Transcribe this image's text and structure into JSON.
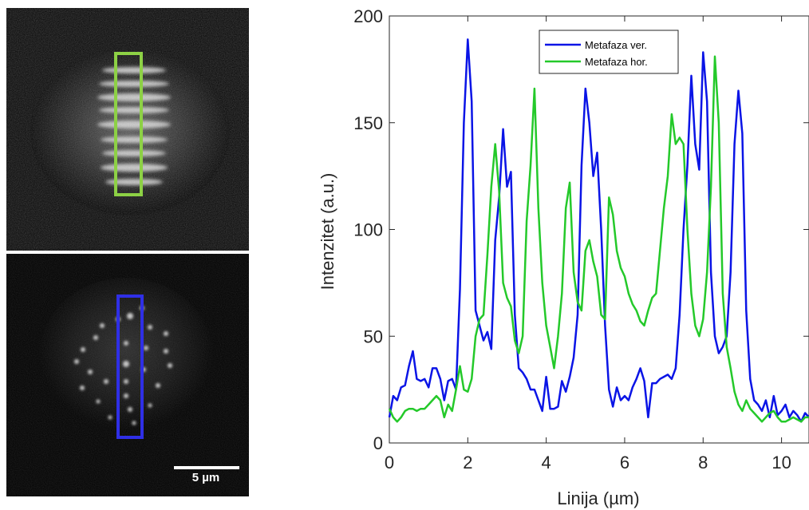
{
  "images": {
    "top_panel": {
      "name": "metaphase-horizontal-micrograph",
      "roi_color": "#8dd145"
    },
    "bottom_panel": {
      "name": "metaphase-vertical-micrograph",
      "roi_color": "#2f2fe6"
    },
    "scale_bar_label": "5 µm"
  },
  "chart_data": {
    "type": "line",
    "title": "",
    "xlabel": "Linija (µm)",
    "ylabel": "Intenzitet (a.u.)",
    "xlim": [
      0,
      10.7
    ],
    "ylim": [
      0,
      200
    ],
    "xticks": [
      0,
      2,
      4,
      6,
      8,
      10
    ],
    "yticks": [
      0,
      50,
      100,
      150,
      200
    ],
    "grid": false,
    "legend_position": "top-center",
    "series": [
      {
        "name": "Metafaza ver.",
        "color": "#0a14e6",
        "x": [
          0.0,
          0.1,
          0.2,
          0.3,
          0.4,
          0.5,
          0.6,
          0.7,
          0.8,
          0.9,
          1.0,
          1.1,
          1.2,
          1.3,
          1.4,
          1.5,
          1.6,
          1.7,
          1.8,
          1.9,
          2.0,
          2.1,
          2.2,
          2.3,
          2.4,
          2.5,
          2.6,
          2.7,
          2.8,
          2.9,
          3.0,
          3.1,
          3.2,
          3.3,
          3.4,
          3.5,
          3.6,
          3.7,
          3.8,
          3.9,
          4.0,
          4.1,
          4.2,
          4.3,
          4.4,
          4.5,
          4.6,
          4.7,
          4.8,
          4.9,
          5.0,
          5.1,
          5.2,
          5.3,
          5.4,
          5.5,
          5.6,
          5.7,
          5.8,
          5.9,
          6.0,
          6.1,
          6.2,
          6.3,
          6.4,
          6.5,
          6.6,
          6.7,
          6.8,
          6.9,
          7.0,
          7.1,
          7.2,
          7.3,
          7.4,
          7.5,
          7.6,
          7.7,
          7.8,
          7.9,
          8.0,
          8.1,
          8.2,
          8.3,
          8.4,
          8.5,
          8.6,
          8.7,
          8.8,
          8.9,
          9.0,
          9.1,
          9.2,
          9.3,
          9.4,
          9.5,
          9.6,
          9.7,
          9.8,
          9.9,
          10.0,
          10.1,
          10.2,
          10.3,
          10.4,
          10.5,
          10.6,
          10.7
        ],
        "values": [
          12,
          22,
          20,
          26,
          27,
          36,
          43,
          30,
          29,
          30,
          26,
          35,
          35,
          30,
          20,
          29,
          30,
          25,
          72,
          150,
          189,
          160,
          62,
          55,
          48,
          52,
          44,
          95,
          115,
          147,
          120,
          127,
          60,
          35,
          33,
          30,
          25,
          25,
          20,
          15,
          31,
          16,
          16,
          17,
          29,
          24,
          31,
          40,
          60,
          130,
          166,
          150,
          125,
          136,
          100,
          55,
          25,
          17,
          26,
          20,
          22,
          20,
          26,
          30,
          35,
          29,
          12,
          28,
          28,
          30,
          31,
          32,
          30,
          35,
          60,
          100,
          130,
          172,
          140,
          128,
          183,
          160,
          80,
          50,
          42,
          45,
          50,
          80,
          140,
          165,
          145,
          62,
          30,
          20,
          18,
          15,
          20,
          12,
          22,
          13,
          15,
          18,
          12,
          15,
          13,
          10,
          14,
          12
        ],
        "note_x_extends": "auto"
      },
      {
        "name": "Metafaza hor.",
        "color": "#24c92a",
        "x": [
          0.0,
          0.1,
          0.2,
          0.3,
          0.4,
          0.5,
          0.6,
          0.7,
          0.8,
          0.9,
          1.0,
          1.1,
          1.2,
          1.3,
          1.4,
          1.5,
          1.6,
          1.7,
          1.8,
          1.9,
          2.0,
          2.1,
          2.2,
          2.3,
          2.4,
          2.5,
          2.6,
          2.7,
          2.8,
          2.9,
          3.0,
          3.1,
          3.2,
          3.3,
          3.4,
          3.5,
          3.6,
          3.7,
          3.8,
          3.9,
          4.0,
          4.1,
          4.2,
          4.3,
          4.4,
          4.5,
          4.6,
          4.7,
          4.8,
          4.9,
          5.0,
          5.1,
          5.2,
          5.3,
          5.4,
          5.5,
          5.6,
          5.7,
          5.8,
          5.9,
          6.0,
          6.1,
          6.2,
          6.3,
          6.4,
          6.5,
          6.6,
          6.7,
          6.8,
          6.9,
          7.0,
          7.1,
          7.2,
          7.3,
          7.4,
          7.5,
          7.6,
          7.7,
          7.8,
          7.9,
          8.0,
          8.1,
          8.2,
          8.3,
          8.4,
          8.5,
          8.6,
          8.7,
          8.8,
          8.9,
          9.0,
          9.1,
          9.2,
          9.3,
          9.4,
          9.5,
          9.6,
          9.7,
          9.8,
          9.9,
          10.0,
          10.1,
          10.2,
          10.3,
          10.4,
          10.5,
          10.6,
          10.7
        ],
        "values": [
          16,
          12,
          10,
          12,
          15,
          16,
          16,
          15,
          16,
          16,
          18,
          20,
          22,
          20,
          12,
          18,
          15,
          25,
          36,
          25,
          24,
          30,
          50,
          58,
          60,
          88,
          120,
          140,
          118,
          75,
          68,
          64,
          48,
          42,
          50,
          104,
          130,
          166,
          110,
          75,
          55,
          45,
          35,
          50,
          70,
          110,
          122,
          80,
          66,
          62,
          90,
          95,
          85,
          78,
          60,
          58,
          115,
          107,
          90,
          82,
          78,
          70,
          65,
          62,
          57,
          55,
          62,
          68,
          70,
          90,
          110,
          125,
          154,
          140,
          143,
          140,
          100,
          70,
          55,
          50,
          58,
          80,
          120,
          181,
          150,
          70,
          45,
          35,
          24,
          18,
          15,
          20,
          16,
          14,
          12,
          10,
          12,
          14,
          15,
          12,
          10,
          10,
          11,
          12,
          11,
          10,
          12,
          12
        ]
      }
    ]
  }
}
